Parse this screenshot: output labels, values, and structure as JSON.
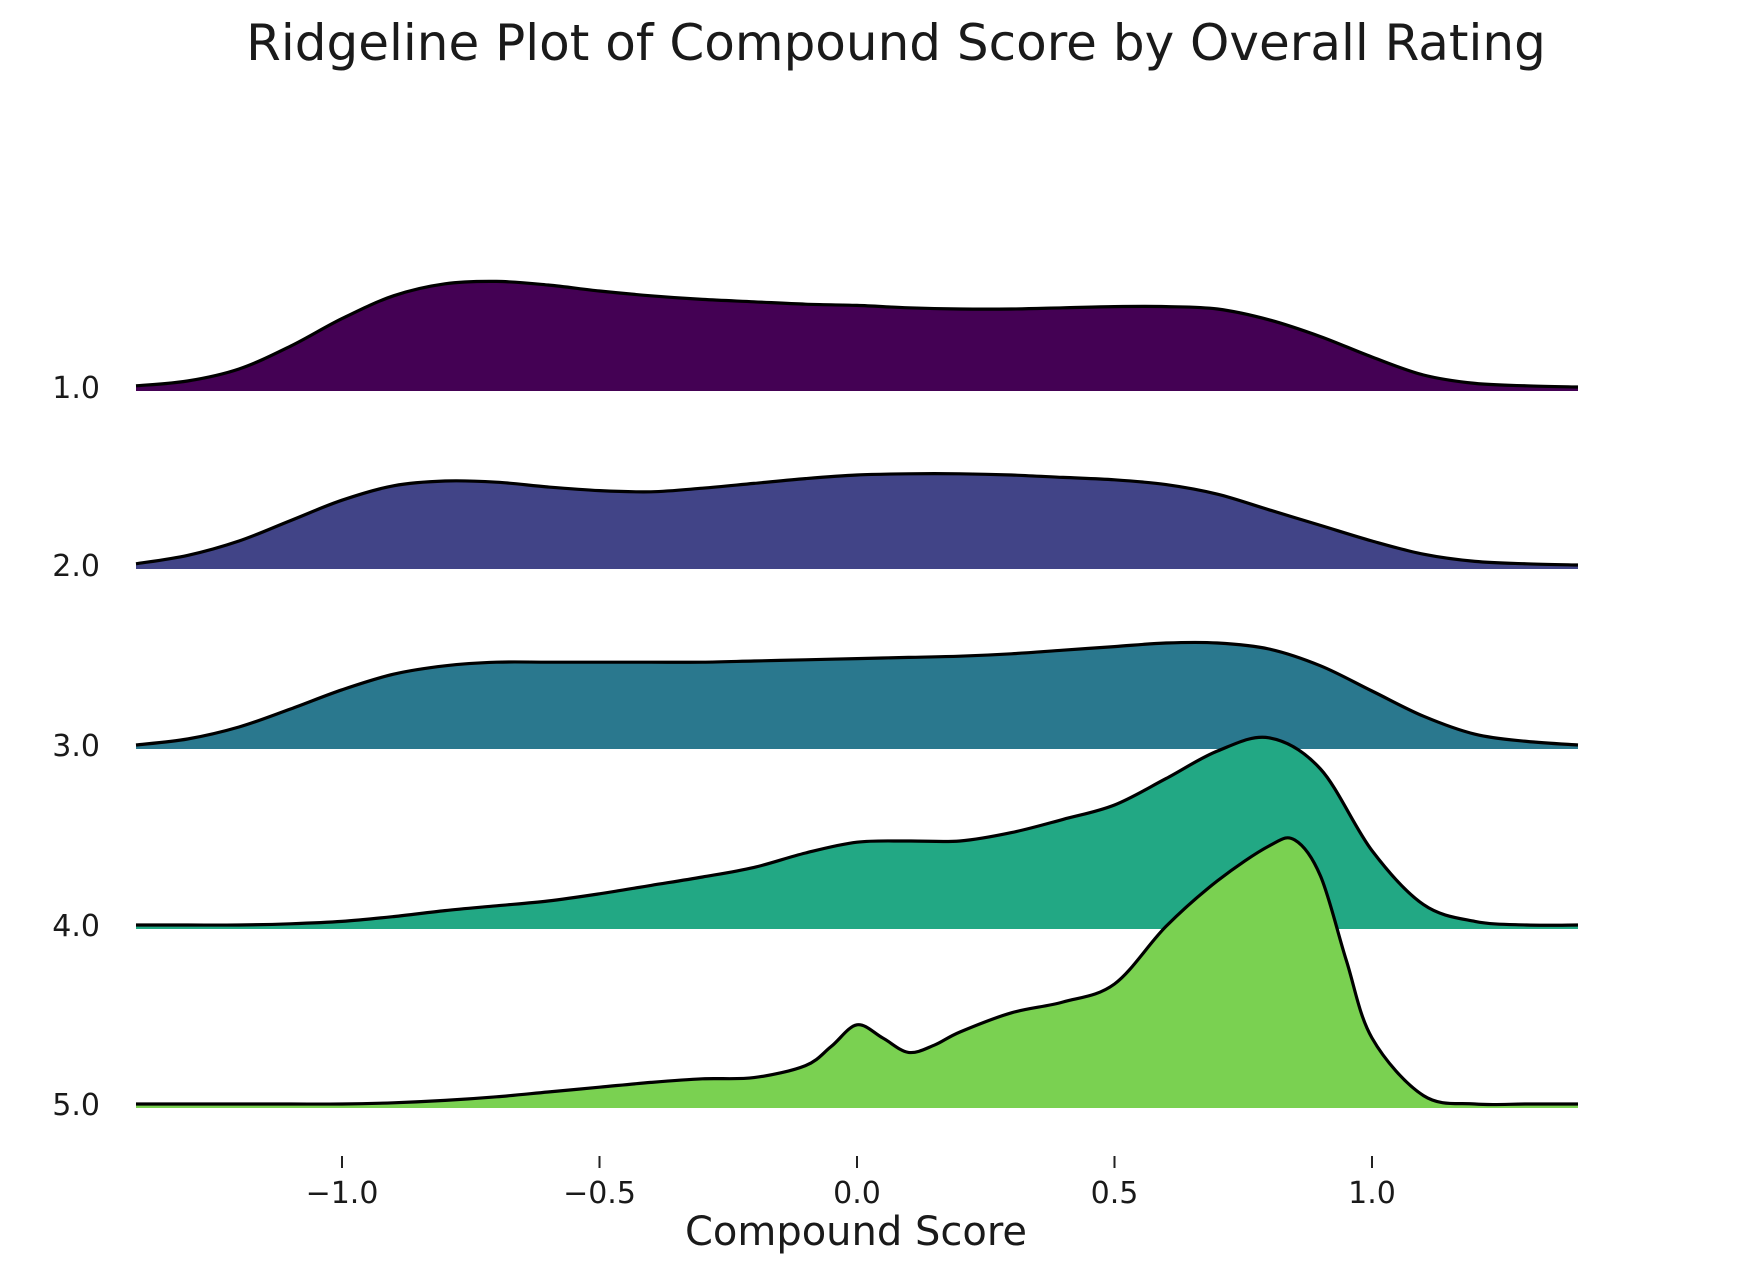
{
  "chart_data": {
    "type": "ridgeline",
    "title": "Ridgeline Plot of Compound Score by Overall Rating",
    "xlabel": "Compound Score",
    "ylabel": "",
    "xlim": [
      -1.4,
      1.4
    ],
    "xticks": [
      {
        "value": -1.0,
        "label": "−1.0"
      },
      {
        "value": -0.5,
        "label": "−0.5"
      },
      {
        "value": 0.0,
        "label": "0.0"
      },
      {
        "value": 0.5,
        "label": "0.5"
      },
      {
        "value": 1.0,
        "label": "1.0"
      }
    ],
    "grid": false,
    "series": [
      {
        "name": "1.0",
        "color": "#440154",
        "x": [
          -1.4,
          -1.3,
          -1.2,
          -1.1,
          -1.0,
          -0.9,
          -0.8,
          -0.7,
          -0.6,
          -0.5,
          -0.4,
          -0.3,
          -0.2,
          -0.1,
          0.0,
          0.1,
          0.2,
          0.3,
          0.4,
          0.5,
          0.6,
          0.7,
          0.8,
          0.9,
          1.0,
          1.1,
          1.2,
          1.3,
          1.4
        ],
        "density": [
          0.01,
          0.05,
          0.15,
          0.34,
          0.57,
          0.76,
          0.86,
          0.88,
          0.85,
          0.8,
          0.76,
          0.73,
          0.71,
          0.69,
          0.68,
          0.66,
          0.65,
          0.65,
          0.66,
          0.67,
          0.67,
          0.65,
          0.56,
          0.42,
          0.25,
          0.1,
          0.03,
          0.01,
          0.0
        ]
      },
      {
        "name": "2.0",
        "color": "#414487",
        "x": [
          -1.4,
          -1.3,
          -1.2,
          -1.1,
          -1.0,
          -0.9,
          -0.8,
          -0.7,
          -0.6,
          -0.5,
          -0.4,
          -0.3,
          -0.2,
          -0.1,
          0.0,
          0.1,
          0.2,
          0.3,
          0.4,
          0.5,
          0.6,
          0.7,
          0.8,
          0.9,
          1.0,
          1.1,
          1.2,
          1.3,
          1.4
        ],
        "density": [
          0.01,
          0.08,
          0.2,
          0.37,
          0.54,
          0.66,
          0.7,
          0.69,
          0.65,
          0.62,
          0.61,
          0.64,
          0.68,
          0.72,
          0.75,
          0.76,
          0.76,
          0.75,
          0.73,
          0.71,
          0.67,
          0.59,
          0.46,
          0.33,
          0.2,
          0.09,
          0.03,
          0.01,
          0.0
        ]
      },
      {
        "name": "3.0",
        "color": "#2a788e",
        "x": [
          -1.4,
          -1.3,
          -1.2,
          -1.1,
          -1.0,
          -0.9,
          -0.8,
          -0.7,
          -0.6,
          -0.5,
          -0.4,
          -0.3,
          -0.2,
          -0.1,
          0.0,
          0.1,
          0.2,
          0.3,
          0.4,
          0.5,
          0.6,
          0.7,
          0.8,
          0.9,
          1.0,
          1.1,
          1.2,
          1.3,
          1.4
        ],
        "density": [
          0.0,
          0.05,
          0.15,
          0.3,
          0.46,
          0.59,
          0.66,
          0.69,
          0.69,
          0.69,
          0.69,
          0.69,
          0.7,
          0.71,
          0.72,
          0.73,
          0.74,
          0.76,
          0.79,
          0.82,
          0.85,
          0.85,
          0.8,
          0.66,
          0.45,
          0.24,
          0.09,
          0.03,
          0.0
        ]
      },
      {
        "name": "4.0",
        "color": "#22a884",
        "x": [
          -1.4,
          -1.3,
          -1.2,
          -1.1,
          -1.0,
          -0.9,
          -0.8,
          -0.7,
          -0.6,
          -0.5,
          -0.4,
          -0.3,
          -0.2,
          -0.1,
          0.0,
          0.1,
          0.2,
          0.3,
          0.4,
          0.5,
          0.6,
          0.7,
          0.8,
          0.9,
          1.0,
          1.1,
          1.2,
          1.3,
          1.4
        ],
        "density": [
          0.0,
          0.0,
          0.0,
          0.01,
          0.03,
          0.07,
          0.12,
          0.16,
          0.2,
          0.26,
          0.33,
          0.4,
          0.48,
          0.6,
          0.69,
          0.7,
          0.7,
          0.77,
          0.88,
          1.0,
          1.22,
          1.45,
          1.56,
          1.3,
          0.62,
          0.17,
          0.03,
          0.0,
          0.0
        ]
      },
      {
        "name": "5.0",
        "color": "#7ad151",
        "x": [
          -1.4,
          -1.3,
          -1.2,
          -1.1,
          -1.0,
          -0.9,
          -0.8,
          -0.7,
          -0.6,
          -0.5,
          -0.4,
          -0.3,
          -0.2,
          -0.1,
          -0.05,
          0.0,
          0.05,
          0.1,
          0.15,
          0.2,
          0.3,
          0.4,
          0.5,
          0.6,
          0.7,
          0.8,
          0.85,
          0.9,
          0.95,
          1.0,
          1.1,
          1.2,
          1.3,
          1.4
        ],
        "density": [
          0.0,
          0.0,
          0.0,
          0.0,
          0.0,
          0.01,
          0.03,
          0.06,
          0.1,
          0.14,
          0.18,
          0.21,
          0.22,
          0.32,
          0.48,
          0.66,
          0.55,
          0.43,
          0.49,
          0.6,
          0.76,
          0.85,
          1.0,
          1.48,
          1.86,
          2.15,
          2.2,
          1.9,
          1.2,
          0.55,
          0.07,
          0.0,
          0.0,
          0.0
        ]
      }
    ]
  }
}
